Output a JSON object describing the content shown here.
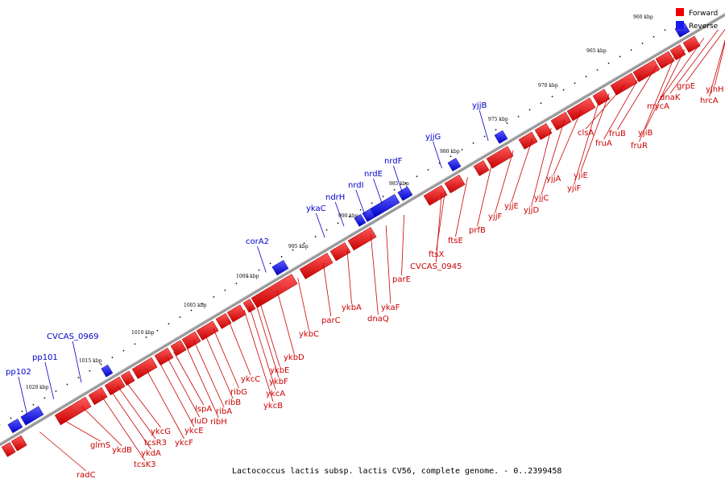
{
  "map_title": "Lactococcus lactis subsp. lactis CV56, complete genome. - 0..2399458",
  "legend": [
    {
      "label": "Forward",
      "color": "#ee0000"
    },
    {
      "label": "Reverse",
      "color": "#1a1aee"
    }
  ],
  "scale_ticks": [
    "960 kbp",
    "965 kbp",
    "970 kbp",
    "975 kbp",
    "980 kbp",
    "985 kbp",
    "990 kbp",
    "995 kbp",
    "1000 kbp",
    "1005 kbp",
    "1010 kbp",
    "1015 kbp",
    "1020 kbp"
  ],
  "forward_genes": [
    "yjhH",
    "hrcA",
    "grpE",
    "dnaK",
    "mycA",
    "yjiB",
    "fruR",
    "fruB",
    "fruA",
    "clsA",
    "yjiE",
    "yjiF",
    "yjjA",
    "yjjC",
    "yjjD",
    "yjjE",
    "yjjF",
    "prfB",
    "ftsE",
    "ftsX",
    "CVCAS_0945",
    "parE",
    "ykaF",
    "dnaQ",
    "ykbA",
    "parC",
    "ykbC",
    "ykbD",
    "ykbE",
    "ykbF",
    "ykcA",
    "ykcB",
    "ykcC",
    "ribG",
    "ribB",
    "ribA",
    "ribH",
    "lspA",
    "rluD",
    "ykcE",
    "ykcF",
    "ykcG",
    "tcsR3",
    "ykdA",
    "tcsK3",
    "ykdB",
    "glmS",
    "radC"
  ],
  "reverse_genes": [
    "yjjB",
    "yjjG",
    "nrdF",
    "nrdE",
    "nrdI",
    "ndrH",
    "ykaC",
    "corA2",
    "CVCAS_0969",
    "pp101",
    "pp102"
  ]
}
